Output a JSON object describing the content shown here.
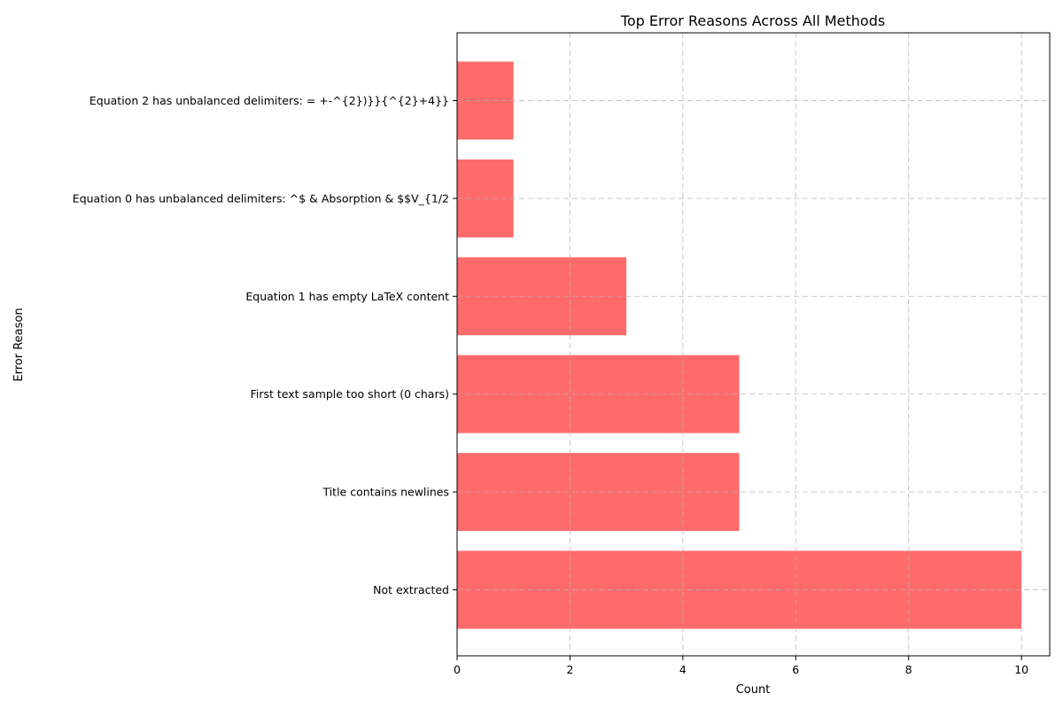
{
  "chart_data": {
    "type": "bar",
    "orientation": "horizontal",
    "title": "Top Error Reasons Across All Methods",
    "xlabel": "Count",
    "ylabel": "Error Reason",
    "categories": [
      "Not extracted",
      "Title contains newlines",
      "First text sample too short (0 chars)",
      "Equation 1 has empty LaTeX content",
      "Equation 0 has unbalanced delimiters: ^$ & Absorption & $$V_{1/2",
      "Equation 2 has unbalanced delimiters: = +-^{2})}}{^{2}+4}}"
    ],
    "values": [
      10,
      5,
      5,
      3,
      1,
      1
    ],
    "xlim": [
      0,
      10.5
    ],
    "xticks": [
      0,
      2,
      4,
      6,
      8,
      10
    ],
    "grid": true,
    "bar_color": "#ff6b6b"
  }
}
